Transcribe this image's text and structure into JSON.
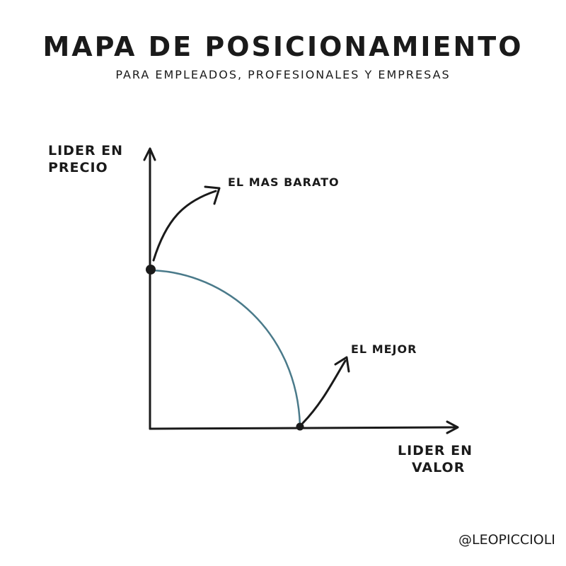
{
  "title": "MAPA DE POSICIONAMIENTO",
  "subtitle": "PARA EMPLEADOS, PROFESIONALES Y EMPRESAS",
  "y_axis_label": [
    "LIDER EN",
    "PRECIO"
  ],
  "x_axis_label": [
    "LIDER EN",
    "VALOR"
  ],
  "annotations": {
    "cheapest": "EL MAS BARATO",
    "best": "EL MEJOR"
  },
  "signature": "@LEOPICCIOLI",
  "colors": {
    "curve": "#4a7a8a",
    "ink": "#1a1a1a"
  }
}
